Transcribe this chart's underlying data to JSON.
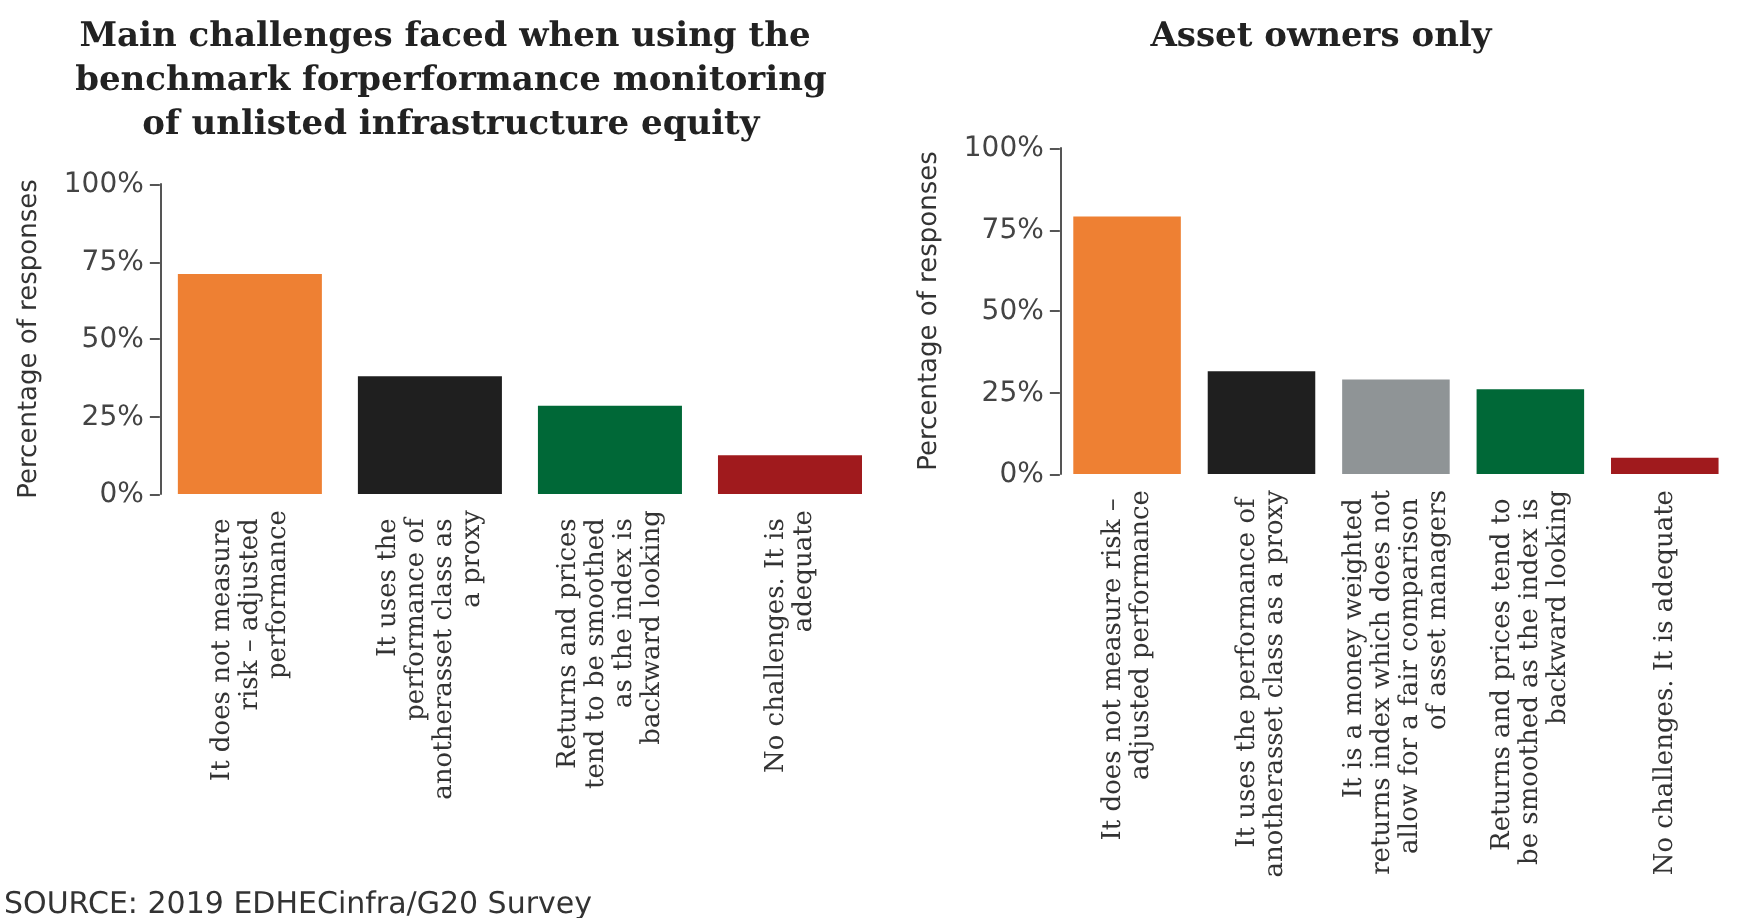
{
  "chart_data": [
    {
      "type": "bar",
      "title": "Main challenges faced when using the benchmark forperformance monitoring of unlisted infrastructure equity",
      "ylabel": "Percentage of responses",
      "categories": [
        "It does not measure risk – adjusted performance",
        "It uses the performance of anotherasset class as a proxy",
        "Returns and prices tend to be smoothed as the index is backward looking",
        "No challenges. It is adequate"
      ],
      "values": [
        71,
        38,
        28.5,
        12.5
      ],
      "colors": [
        "#ee8033",
        "#1f1f1f",
        "#006837",
        "#a01a1d"
      ],
      "ylim": [
        0,
        100
      ],
      "yticks": [
        {
          "value": 0,
          "label": "0%"
        },
        {
          "value": 25,
          "label": "25%"
        },
        {
          "value": 50,
          "label": "50%"
        },
        {
          "value": 75,
          "label": "75%"
        },
        {
          "value": 100,
          "label": "100%"
        }
      ],
      "grid": false,
      "annotations": [
        "SOURCE: 2019 EDHECinfra/G20 Survey"
      ]
    },
    {
      "type": "bar",
      "title": "Asset owners only",
      "ylabel": "Percentage of responses",
      "categories": [
        "It does not measure risk – adjusted performance",
        "It uses the performance of anotherasset class as a proxy",
        "It is a money weighted returns index which does not allow for a fair comparison of asset managers",
        "Returns and prices tend to be smoothed as the index is backward looking",
        "No challenges. It is adequate"
      ],
      "values": [
        79,
        31.5,
        29,
        26,
        5
      ],
      "colors": [
        "#ee8033",
        "#1f1f1f",
        "#8f9496",
        "#006837",
        "#a01a1d"
      ],
      "ylim": [
        0,
        100
      ],
      "yticks": [
        {
          "value": 0,
          "label": "0%"
        },
        {
          "value": 25,
          "label": "25%"
        },
        {
          "value": 50,
          "label": "50%"
        },
        {
          "value": 75,
          "label": "75%"
        },
        {
          "value": 100,
          "label": "100%"
        }
      ],
      "grid": false
    }
  ]
}
